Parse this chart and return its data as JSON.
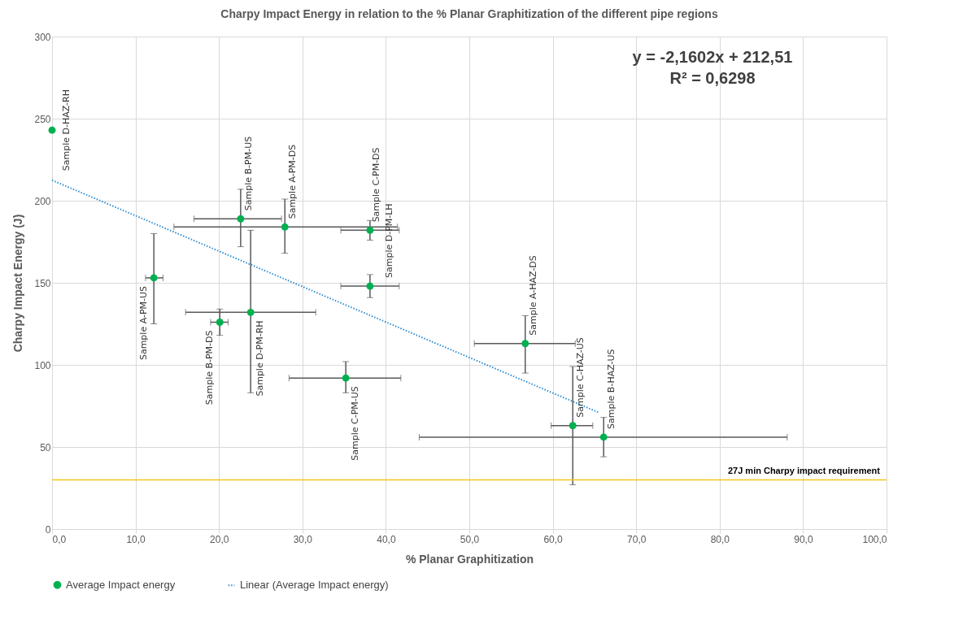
{
  "chart_data": {
    "type": "scatter",
    "title": "Charpy Impact Energy in relation to the % Planar Graphitization of the different pipe regions",
    "xlabel": "% Planar Graphitization",
    "ylabel": "Charpy Impact Energy (J)",
    "xlim": [
      0,
      100
    ],
    "xticks": [
      {
        "value": 0,
        "label": "0,0"
      },
      {
        "value": 10,
        "label": "10,0"
      },
      {
        "value": 20,
        "label": "20,0"
      },
      {
        "value": 30,
        "label": "30,0"
      },
      {
        "value": 40,
        "label": "40,0"
      },
      {
        "value": 50,
        "label": "50,0"
      },
      {
        "value": 60,
        "label": "60,0"
      },
      {
        "value": 70,
        "label": "70,0"
      },
      {
        "value": 80,
        "label": "80,0"
      },
      {
        "value": 90,
        "label": "90,0"
      },
      {
        "value": 100,
        "label": "100,0"
      }
    ],
    "ylim": [
      0,
      300
    ],
    "yticks": [
      0,
      50,
      100,
      150,
      200,
      250,
      300
    ],
    "grid": true,
    "legend": "bottom",
    "series": [
      {
        "name": "Average Impact energy",
        "color": "#00b050",
        "x": [
          0,
          12.2,
          22.6,
          27.9,
          38.1,
          38.1,
          20.1,
          23.8,
          35.2,
          56.7,
          62.4,
          66.1
        ],
        "values": [
          243,
          153,
          189,
          184,
          182,
          148,
          126,
          132,
          92,
          113,
          63,
          56
        ],
        "errors": [
          null,
          [
            125,
            180
          ],
          [
            172,
            207
          ],
          [
            168,
            201
          ],
          [
            176,
            188
          ],
          [
            141,
            155
          ],
          [
            118,
            134
          ],
          [
            83,
            182
          ],
          [
            83,
            102
          ],
          [
            95,
            130
          ],
          [
            27,
            99
          ],
          [
            44,
            68
          ]
        ],
        "xerrors": [
          null,
          [
            11.2,
            13.3
          ],
          [
            17,
            27.5
          ],
          [
            14.6,
            41.4
          ],
          [
            34.6,
            41.6
          ],
          [
            34.6,
            41.6
          ],
          [
            19,
            21.1
          ],
          [
            16,
            31.6
          ],
          [
            28.4,
            41.8
          ],
          [
            50.6,
            62.7
          ],
          [
            59.8,
            64.8
          ],
          [
            44,
            88.1
          ]
        ],
        "value_labels": [
          "Sample D-HAZ-RH",
          "Sample A-PM-US",
          "Sample B-PM-US",
          "Sample A-PM-DS",
          "Sample C-PM-DS",
          "Sample D-PM-LH",
          "Sample B-PM-DS",
          "Sample D-PM-RH",
          "Sample C-PM-US",
          "Sample A-HAZ-DS",
          "Sample C-HAZ-US",
          "Sample B-HAZ-US"
        ]
      },
      {
        "type": "line",
        "name": "Linear (Average Impact energy)",
        "color": "#2e8fd6",
        "line_style": "dotted",
        "x": [
          0,
          65.5
        ],
        "values": [
          212.5,
          71.0
        ]
      }
    ],
    "ref_lines": [
      {
        "axis": "y",
        "value": 30,
        "label": "27J min Charpy impact requirement",
        "color": "#f5c518"
      }
    ],
    "annotations": [
      "y = -2,1602x + 212,51",
      "R² = 0,6298"
    ]
  }
}
